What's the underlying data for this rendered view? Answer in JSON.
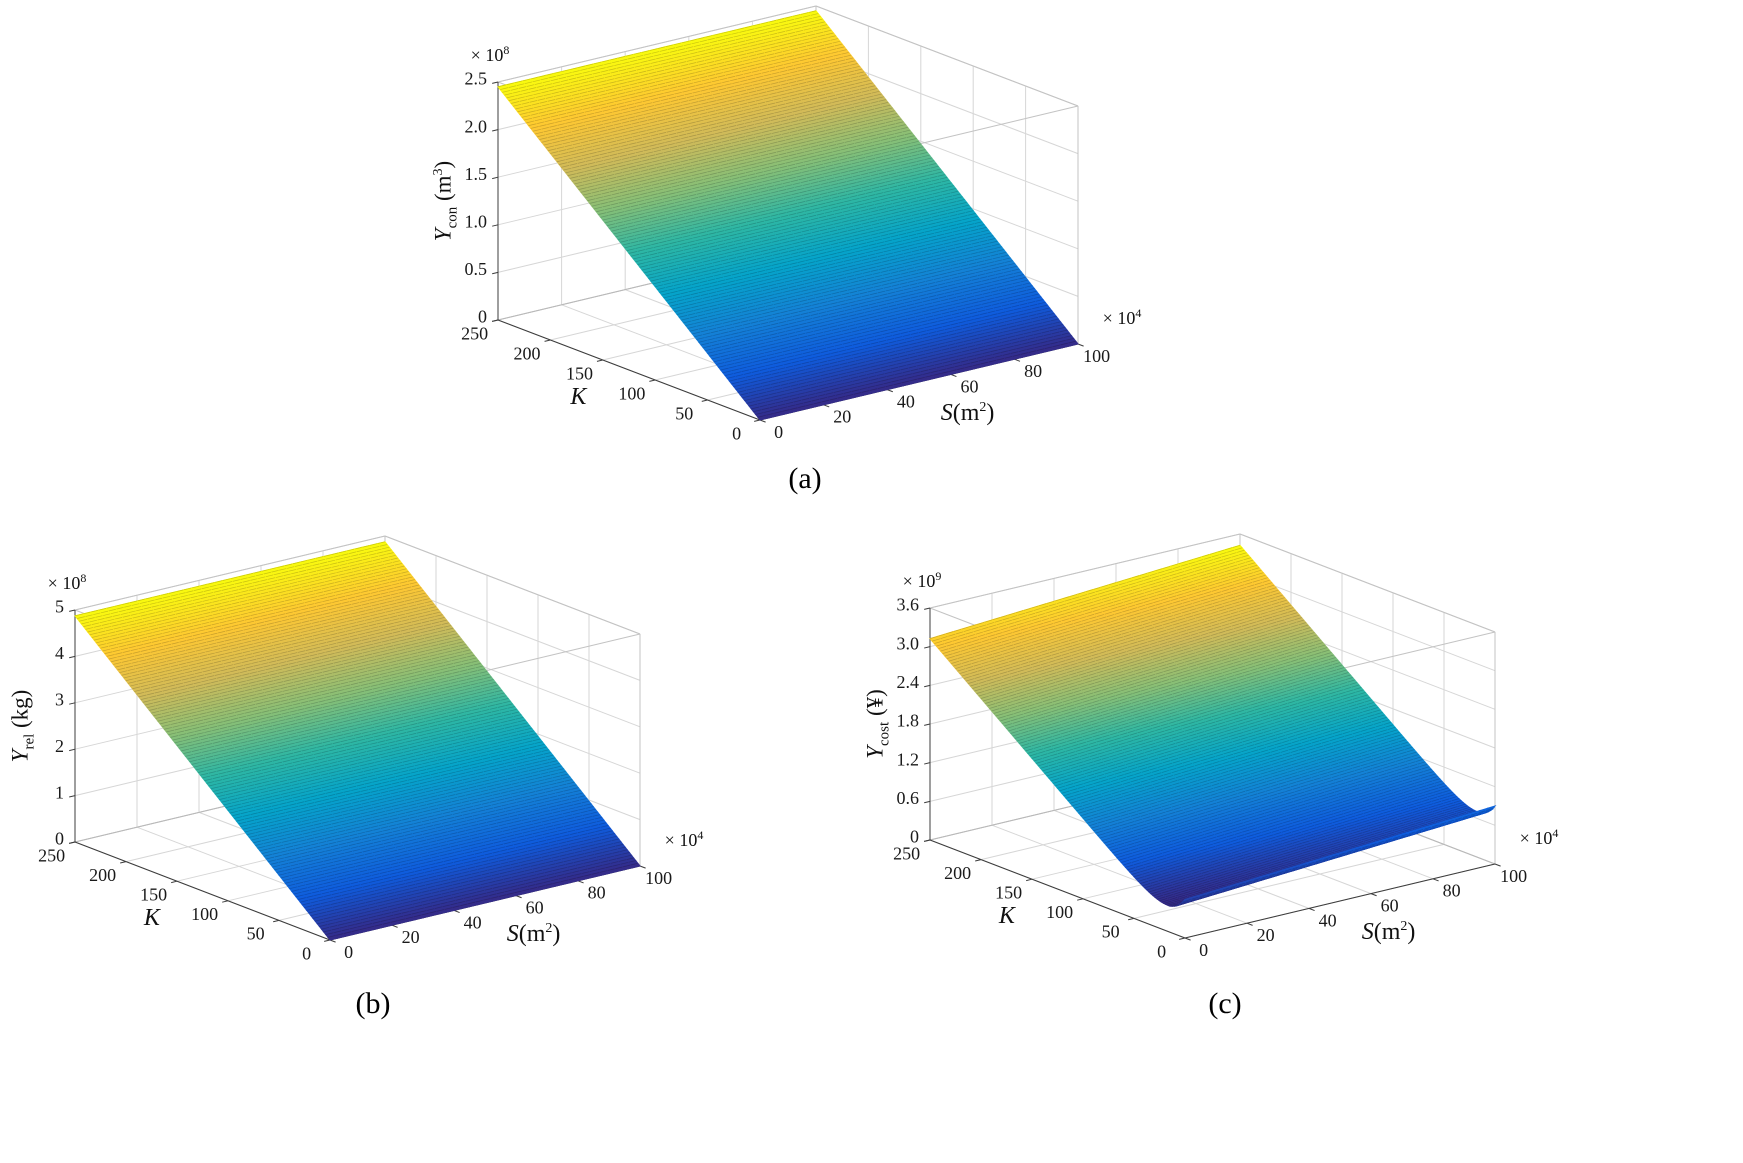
{
  "page": {
    "background": "#ffffff"
  },
  "colormap": {
    "name": "parula-like",
    "stops": [
      [
        53,
        42,
        135
      ],
      [
        15,
        92,
        221
      ],
      [
        20,
        129,
        214
      ],
      [
        6,
        164,
        202
      ],
      [
        46,
        183,
        164
      ],
      [
        135,
        191,
        119
      ],
      [
        209,
        187,
        89
      ],
      [
        254,
        200,
        50
      ],
      [
        249,
        251,
        14
      ]
    ]
  },
  "chart_data": [
    {
      "id": "a",
      "type": "surface3d",
      "caption": "(a)",
      "x_axis": {
        "label_italic": "S",
        "label_pre": "(m",
        "label_exp": "2",
        "label_post": ")",
        "ticks": [
          "0",
          "20",
          "40",
          "60",
          "80",
          "100"
        ],
        "multiplier_base": "× 10",
        "multiplier_exp": "4",
        "range": [
          0,
          100
        ]
      },
      "y_axis": {
        "label": "K",
        "ticks": [
          "0",
          "50",
          "100",
          "150",
          "200",
          "250"
        ],
        "range": [
          0,
          250
        ]
      },
      "z_axis": {
        "label_italic": "Y",
        "label_sub": "con",
        "label_pre": " (m",
        "label_exp": "3",
        "label_post": ")",
        "ticks": [
          "0",
          "0.5",
          "1.0",
          "1.5",
          "2.0",
          "2.5"
        ],
        "multiplier_base": "× 10",
        "multiplier_exp": "8",
        "range": [
          0,
          250000000
        ]
      },
      "surface": {
        "model": "linear_k",
        "params": {
          "c": 980000
        },
        "z_min": 0,
        "z_max": 245000000,
        "note": "Ycon rises linearly with K (0 to ~2.45e8 m3), nearly independent of S"
      }
    },
    {
      "id": "b",
      "type": "surface3d",
      "caption": "(b)",
      "x_axis": {
        "label_italic": "S",
        "label_pre": "(m",
        "label_exp": "2",
        "label_post": ")",
        "ticks": [
          "0",
          "20",
          "40",
          "60",
          "80",
          "100"
        ],
        "multiplier_base": "× 10",
        "multiplier_exp": "4",
        "range": [
          0,
          100
        ]
      },
      "y_axis": {
        "label": "K",
        "ticks": [
          "0",
          "50",
          "100",
          "150",
          "200",
          "250"
        ],
        "range": [
          0,
          250
        ]
      },
      "z_axis": {
        "label_italic": "Y",
        "label_sub": "rel",
        "label_pre": " (kg)",
        "label_exp": "",
        "label_post": "",
        "ticks": [
          "0",
          "1",
          "2",
          "3",
          "4",
          "5"
        ],
        "multiplier_base": "× 10",
        "multiplier_exp": "8",
        "range": [
          0,
          500000000
        ]
      },
      "surface": {
        "model": "linear_k",
        "params": {
          "c": 1950000
        },
        "z_min": 0,
        "z_max": 487500000,
        "note": "Yrel rises linearly with K (0 to ~4.9e8 kg), nearly independent of S"
      }
    },
    {
      "id": "c",
      "type": "surface3d",
      "caption": "(c)",
      "x_axis": {
        "label_italic": "S",
        "label_pre": "(m",
        "label_exp": "2",
        "label_post": ")",
        "ticks": [
          "0",
          "20",
          "40",
          "60",
          "80",
          "100"
        ],
        "multiplier_base": "× 10",
        "multiplier_exp": "4",
        "range": [
          0,
          100
        ]
      },
      "y_axis": {
        "label": "K",
        "ticks": [
          "0",
          "50",
          "100",
          "150",
          "200",
          "250"
        ],
        "range": [
          0,
          250
        ]
      },
      "z_axis": {
        "label_italic": "Y",
        "label_sub": "cost",
        "label_pre": " (¥)",
        "label_exp": "",
        "label_post": "",
        "ticks": [
          "0",
          "0.6",
          "1.2",
          "1.8",
          "2.4",
          "3.0",
          "3.6"
        ],
        "multiplier_base": "× 10",
        "multiplier_exp": "9",
        "range": [
          0,
          3600000000
        ]
      },
      "surface": {
        "model": "cost",
        "params": {
          "a": 12500000,
          "b": 600000000,
          "tau": 15,
          "c": 3000000
        },
        "z_min": 405000000,
        "z_max": 3425000000,
        "note": "Ycost dips to a minimum near K~17 then rises ~linearly with K; small increase with S"
      }
    }
  ]
}
